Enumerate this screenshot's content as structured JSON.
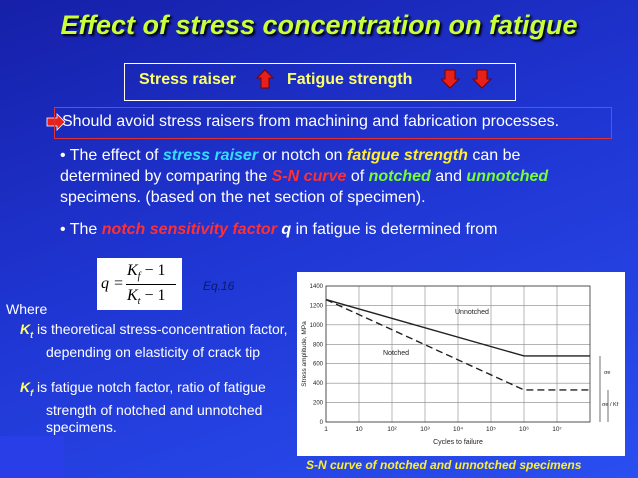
{
  "title": "Effect of stress concentration on fatigue",
  "relation": {
    "cause": "Stress raiser",
    "effect": "Fatigue strength"
  },
  "note": "Should avoid stress raisers from machining and fabrication processes.",
  "bullets": [
    {
      "segments": [
        "• The effect of ",
        "stress raiser",
        " or notch on ",
        "fatigue strength",
        " can be determined by comparing the ",
        "S-N curve",
        " of ",
        "notched",
        " and ",
        "unnotched",
        " specimens. (based on the net section of specimen)."
      ]
    },
    {
      "segments": [
        "• The ",
        "notch sensitivity factor",
        " q",
        " in fatigue is determined from"
      ]
    }
  ],
  "equation": {
    "lhs": "q =",
    "numerator": {
      "symbol": "K",
      "subscript": "f",
      "rest": " − 1"
    },
    "denominator": {
      "symbol": "K",
      "subscript": "t",
      "rest": " − 1"
    },
    "label": "Eq.16"
  },
  "definitions": {
    "intro": "Where",
    "items": [
      {
        "symbol": "K",
        "subscript": "t",
        "text": " is theoretical stress-concentration factor, depending on elasticity of crack tip"
      },
      {
        "symbol": "K",
        "subscript": "f",
        "text": " is fatigue notch factor, ratio of fatigue strength of notched and unnotched specimens."
      }
    ]
  },
  "chart_data": {
    "type": "line",
    "xscale": "log",
    "ylabel": "Stress amplitude, MPa",
    "xlabel": "Cycles to failure",
    "caption": "S-N curve of notched and unnotched specimens",
    "xlim": [
      1,
      100000000
    ],
    "xticks": [
      1,
      10,
      {
        "value": 100,
        "label": "10²"
      },
      {
        "value": 1000,
        "label": "10³"
      },
      {
        "value": 10000,
        "label": "10⁴"
      },
      {
        "value": 100000,
        "label": "10⁵"
      },
      {
        "value": 1000000,
        "label": "10⁶"
      },
      {
        "value": 10000000,
        "label": "10⁷"
      }
    ],
    "ylim": [
      0,
      1400
    ],
    "yticks": [
      0,
      200,
      400,
      600,
      800,
      1000,
      1200,
      1400
    ],
    "grid": true,
    "series": [
      {
        "name": "Unnotched",
        "color": "#222222",
        "dash": false,
        "x": [
          1,
          1000000,
          100000000
        ],
        "values": [
          1260,
          680,
          680
        ]
      },
      {
        "name": "Notched",
        "color": "#222222",
        "dash": true,
        "x": [
          1,
          1000000,
          100000000
        ],
        "values": [
          1260,
          330,
          330
        ]
      }
    ],
    "annotations": [
      "σe",
      "σe / Kf"
    ]
  }
}
